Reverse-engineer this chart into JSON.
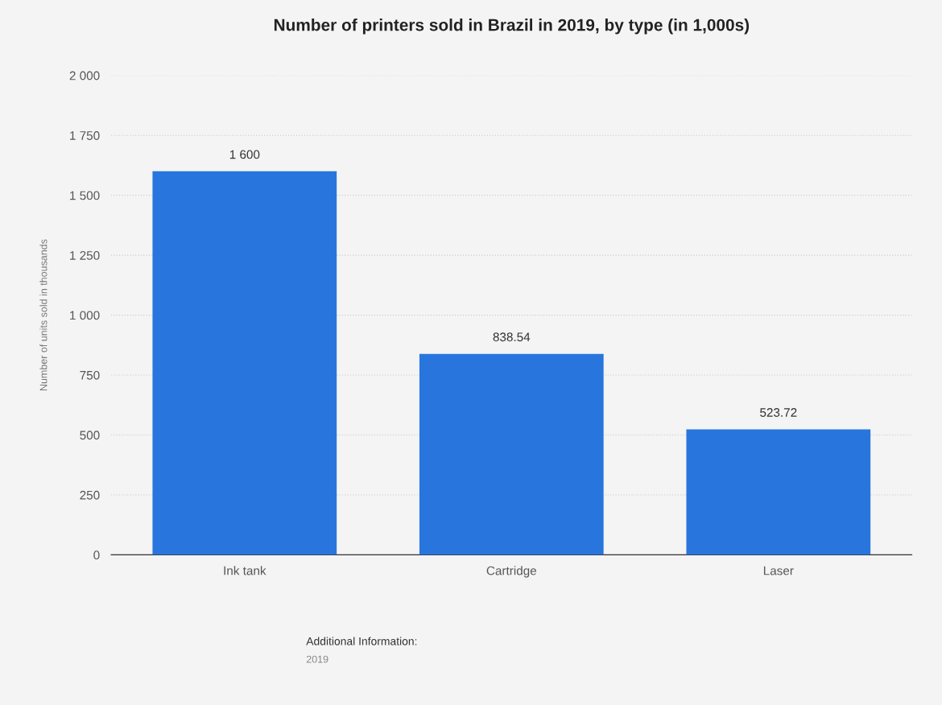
{
  "chart_data": {
    "type": "bar",
    "title": "Number of printers sold in Brazil in 2019, by type (in 1,000s)",
    "ylabel": "Number of units sold in thousands",
    "categories": [
      "Ink tank",
      "Cartridge",
      "Laser"
    ],
    "values": [
      1600,
      838.54,
      523.72
    ],
    "value_labels": [
      "1 600",
      "838.54",
      "523.72"
    ],
    "color": "#2876dd",
    "ylim": [
      0,
      2000
    ],
    "yticks": [
      {
        "value": 0,
        "label": "0"
      },
      {
        "value": 250,
        "label": "250"
      },
      {
        "value": 500,
        "label": "500"
      },
      {
        "value": 750,
        "label": "750"
      },
      {
        "value": 1000,
        "label": "1 000"
      },
      {
        "value": 1250,
        "label": "1 250"
      },
      {
        "value": 1500,
        "label": "1 500"
      },
      {
        "value": 1750,
        "label": "1 750"
      },
      {
        "value": 2000,
        "label": "2 000"
      }
    ],
    "grid": "y",
    "annotations": [
      "Additional Information:",
      "2019"
    ]
  }
}
